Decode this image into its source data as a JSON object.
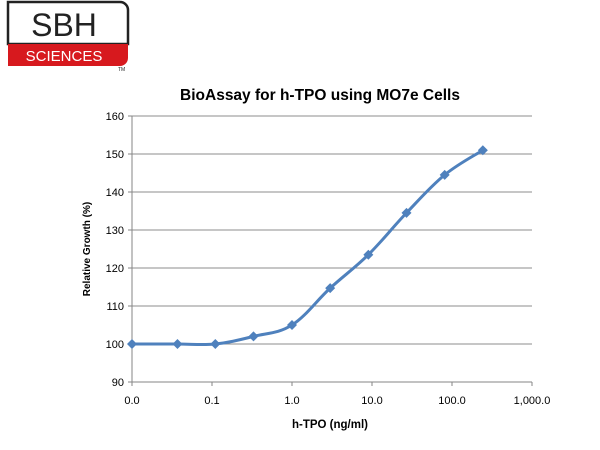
{
  "logo": {
    "top_text": "SBH",
    "bottom_text": "SCIENCES",
    "trademark": "TM",
    "brand_red": "#d7191e"
  },
  "chart_data": {
    "type": "line",
    "title": "BioAssay for h-TPO using MO7e Cells",
    "xlabel": "h-TPO (ng/ml)",
    "ylabel": "Relative Growth (%)",
    "x_scale": "log",
    "x_tick_labels": [
      "0.0",
      "0.1",
      "1.0",
      "10.0",
      "100.0",
      "1,000.0"
    ],
    "y_tick_labels": [
      "90",
      "100",
      "110",
      "120",
      "130",
      "140",
      "150",
      "160"
    ],
    "ylim": [
      90,
      160
    ],
    "grid": "horizontal",
    "legend": "none",
    "line_color": "#4f81bd",
    "series": [
      {
        "x": [
          0.01,
          0.037,
          0.11,
          0.33,
          1.0,
          3.0,
          9.0,
          27.0,
          81.0,
          243.0
        ],
        "values": [
          100,
          100,
          100,
          102,
          105,
          114.7,
          123.5,
          134.5,
          144.5,
          151
        ]
      }
    ]
  }
}
